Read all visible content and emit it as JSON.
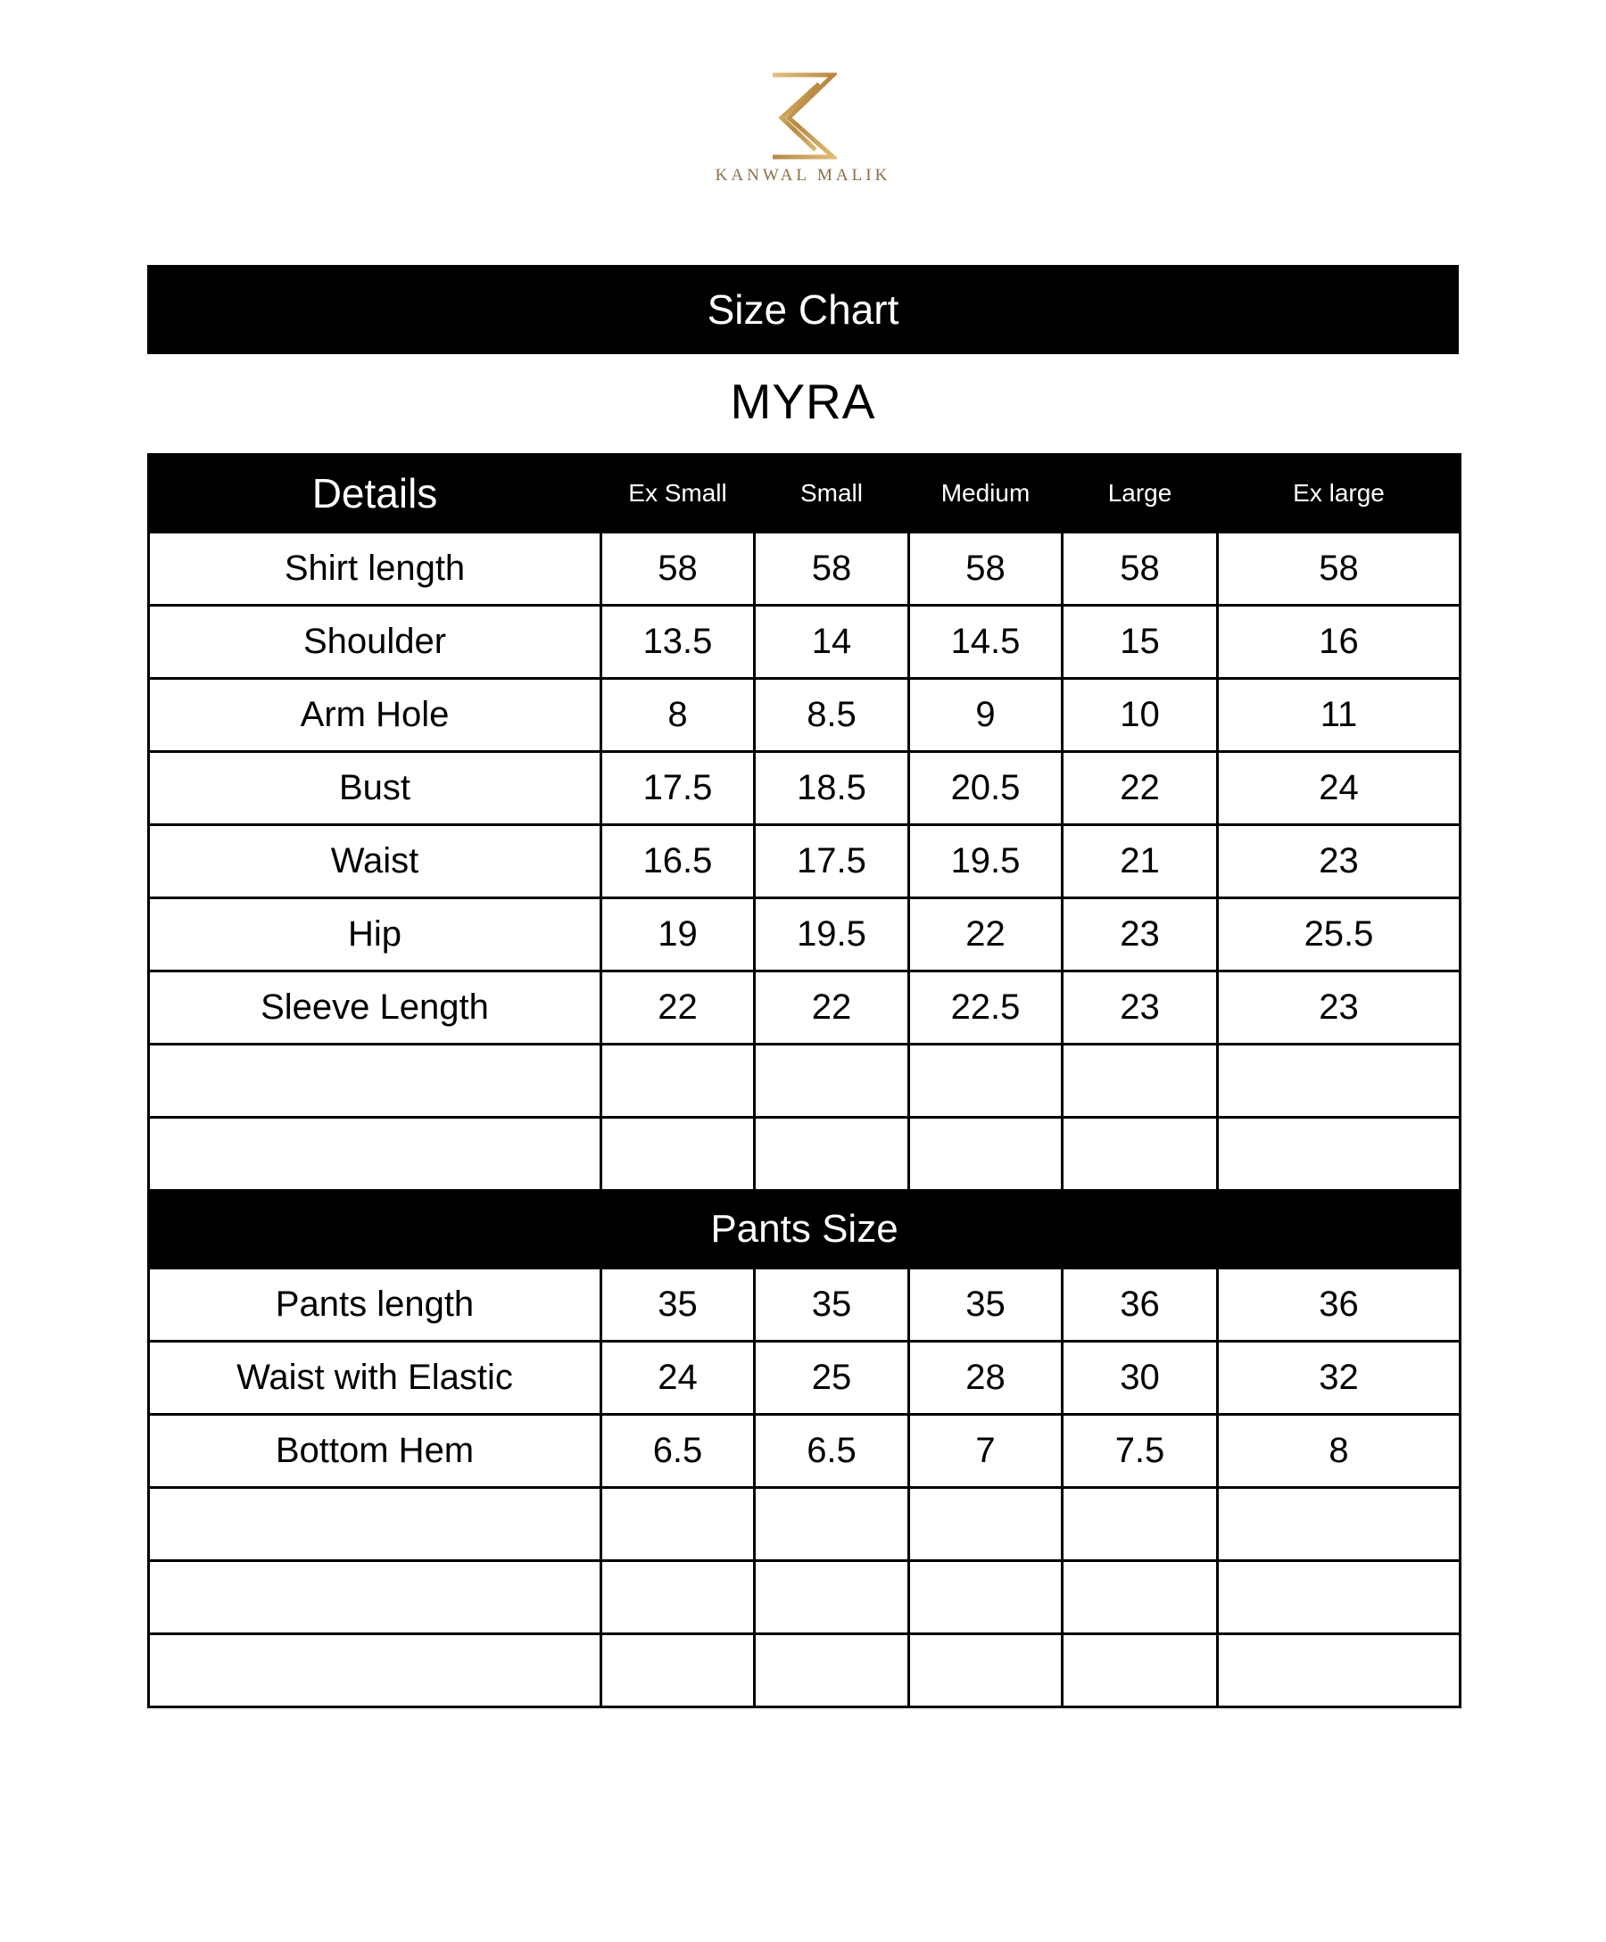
{
  "brand": {
    "name": "KANWAL MALIK",
    "logo_color": "#c9a55c"
  },
  "title": "Size Chart",
  "product": "MYRA",
  "header": {
    "first": "Details",
    "sizes": [
      "Ex Small",
      "Small",
      "Medium",
      "Large",
      "Ex large"
    ]
  },
  "shirt_rows": [
    {
      "label": "Shirt length",
      "values": [
        "58",
        "58",
        "58",
        "58",
        "58"
      ]
    },
    {
      "label": "Shoulder",
      "values": [
        "13.5",
        "14",
        "14.5",
        "15",
        "16"
      ]
    },
    {
      "label": "Arm Hole",
      "values": [
        "8",
        "8.5",
        "9",
        "10",
        "11"
      ]
    },
    {
      "label": "Bust",
      "values": [
        "17.5",
        "18.5",
        "20.5",
        "22",
        "24"
      ]
    },
    {
      "label": "Waist",
      "values": [
        "16.5",
        "17.5",
        "19.5",
        "21",
        "23"
      ]
    },
    {
      "label": "Hip",
      "values": [
        "19",
        "19.5",
        "22",
        "23",
        "25.5"
      ]
    },
    {
      "label": "Sleeve Length",
      "values": [
        "22",
        "22",
        "22.5",
        "23",
        "23"
      ]
    }
  ],
  "shirt_empty_rows": 2,
  "pants_title": "Pants Size",
  "pants_rows": [
    {
      "label": "Pants length",
      "values": [
        "35",
        "35",
        "35",
        "36",
        "36"
      ]
    },
    {
      "label": "Waist with Elastic",
      "values": [
        "24",
        "25",
        "28",
        "30",
        "32"
      ]
    },
    {
      "label": "Bottom Hem",
      "values": [
        "6.5",
        "6.5",
        "7",
        "7.5",
        "8"
      ]
    }
  ],
  "pants_empty_rows": 3
}
